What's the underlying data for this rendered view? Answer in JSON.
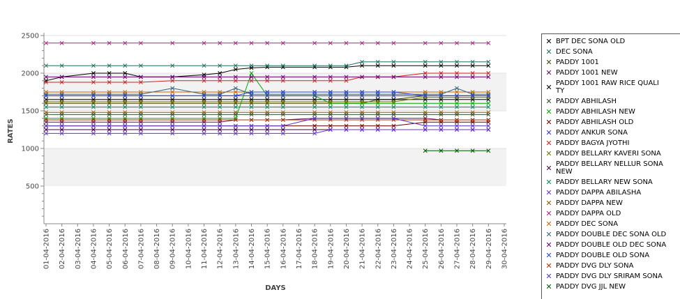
{
  "chart_data": {
    "type": "line",
    "title": "",
    "xlabel": "DAYS",
    "ylabel": "RATES",
    "ylim": [
      0,
      2500
    ],
    "yticks": [
      500,
      1000,
      1500,
      2000,
      2500
    ],
    "grid": "alternating horizontal bands",
    "legend_position": "right",
    "categories": [
      "01-04-2016",
      "02-04-2016",
      "03-04-2016",
      "04-04-2016",
      "05-04-2016",
      "06-04-2016",
      "07-04-2016",
      "08-04-2016",
      "09-04-2016",
      "10-04-2016",
      "11-04-2016",
      "12-04-2016",
      "13-04-2016",
      "14-04-2016",
      "15-04-2016",
      "16-04-2016",
      "17-04-2016",
      "18-04-2016",
      "19-04-2016",
      "20-04-2016",
      "21-04-2016",
      "22-04-2016",
      "23-04-2016",
      "24-04-2016",
      "25-04-2016",
      "26-04-2016",
      "27-04-2016",
      "28-04-2016",
      "29-04-2016",
      "30-04-2016"
    ],
    "series": [
      {
        "name": "BPT DEC SONA OLD",
        "color": "#000000",
        "values": [
          1900,
          1950,
          null,
          2000,
          2000,
          2000,
          1950,
          null,
          1950,
          null,
          1980,
          2000,
          2050,
          2070,
          2080,
          2080,
          null,
          2080,
          2080,
          2080,
          2100,
          2100,
          2100,
          null,
          2100,
          2100,
          2100,
          2100,
          2100,
          null
        ]
      },
      {
        "name": "DEC SONA",
        "color": "#1f6f5f",
        "values": [
          2100,
          2100,
          null,
          2100,
          2100,
          2100,
          2100,
          null,
          2100,
          null,
          2100,
          2100,
          2100,
          2100,
          2100,
          2100,
          null,
          2100,
          2100,
          2100,
          2150,
          2150,
          2150,
          null,
          2150,
          2150,
          2150,
          2150,
          2150,
          null
        ]
      },
      {
        "name": "PADDY 1001",
        "color": "#444400",
        "values": [
          1600,
          1600,
          null,
          1600,
          1600,
          1600,
          1600,
          null,
          1600,
          null,
          1600,
          1600,
          1600,
          1600,
          1600,
          1600,
          null,
          1600,
          1600,
          1600,
          1600,
          1650,
          1650,
          null,
          1700,
          1700,
          1700,
          1700,
          1700,
          null
        ]
      },
      {
        "name": "PADDY 1001 NEW",
        "color": "#5a0f5a",
        "values": [
          1350,
          1350,
          null,
          1350,
          1350,
          1350,
          1350,
          null,
          1350,
          null,
          1350,
          1350,
          1380,
          1380,
          1380,
          1380,
          null,
          1400,
          1400,
          1400,
          1400,
          1400,
          1400,
          null,
          1400,
          1380,
          1380,
          1380,
          1380,
          null
        ]
      },
      {
        "name": "PADDY 1001 RAW RICE QUALITY",
        "color": "#000000",
        "values": [
          1650,
          1650,
          null,
          1650,
          1650,
          1650,
          1650,
          null,
          1650,
          null,
          1650,
          1650,
          1650,
          1650,
          1650,
          1650,
          null,
          1650,
          1650,
          1650,
          1650,
          1650,
          1650,
          null,
          1650,
          1650,
          1650,
          1650,
          1650,
          null
        ]
      },
      {
        "name": "PADDY ABHILASH",
        "color": "#2f4f2f",
        "values": [
          1450,
          1450,
          null,
          1450,
          1450,
          1450,
          1450,
          null,
          1450,
          null,
          1450,
          1450,
          1450,
          1450,
          1450,
          1450,
          null,
          1450,
          1450,
          1450,
          1450,
          1450,
          1450,
          null,
          1450,
          1450,
          1450,
          1450,
          1450,
          null
        ]
      },
      {
        "name": "PADDY ABHILASH NEW",
        "color": "#00aa00",
        "values": [
          1400,
          1400,
          null,
          1400,
          1400,
          1400,
          1400,
          null,
          1400,
          null,
          1400,
          1400,
          1400,
          2000,
          1700,
          1700,
          null,
          1700,
          1600,
          1600,
          1600,
          1600,
          1600,
          null,
          1600,
          1600,
          1600,
          1600,
          1600,
          null
        ]
      },
      {
        "name": "PADDY ABHILASH OLD",
        "color": "#660000",
        "values": [
          1300,
          1300,
          null,
          1300,
          1300,
          1300,
          1300,
          null,
          1300,
          null,
          1300,
          1300,
          1300,
          1300,
          1300,
          1300,
          null,
          1300,
          1300,
          1300,
          1300,
          1300,
          1300,
          null,
          1350,
          1350,
          1350,
          1350,
          1350,
          null
        ]
      },
      {
        "name": "PADDY ANKUR SONA",
        "color": "#3333cc",
        "values": [
          1700,
          1700,
          null,
          1700,
          1700,
          1700,
          1700,
          null,
          1700,
          null,
          1700,
          1700,
          1700,
          1700,
          1700,
          1700,
          null,
          1700,
          1700,
          1700,
          1700,
          1700,
          1700,
          null,
          1700,
          1700,
          1700,
          1700,
          1700,
          null
        ]
      },
      {
        "name": "PADDY BAGYA JYOTHI",
        "color": "#cc2222",
        "values": [
          1880,
          1880,
          null,
          1880,
          1880,
          1880,
          1880,
          null,
          1900,
          null,
          1900,
          1900,
          1900,
          1900,
          1900,
          1900,
          null,
          1900,
          1900,
          1900,
          1950,
          1950,
          1950,
          null,
          2000,
          2000,
          2000,
          2000,
          2000,
          null
        ]
      },
      {
        "name": "PADDY BELLARY KAVERI SONA",
        "color": "#777700",
        "values": [
          1620,
          1620,
          null,
          1620,
          1620,
          1620,
          1620,
          null,
          1620,
          null,
          1620,
          1620,
          1620,
          1620,
          1620,
          1620,
          null,
          1620,
          1620,
          1620,
          1620,
          1620,
          1620,
          null,
          1680,
          1680,
          1680,
          1680,
          1680,
          null
        ]
      },
      {
        "name": "PADDY BELLARY NELLUR SONA NEW",
        "color": "#440044",
        "values": [
          1250,
          1250,
          null,
          1250,
          1250,
          1250,
          1250,
          null,
          1250,
          null,
          1250,
          1250,
          1250,
          1250,
          1250,
          1250,
          null,
          1250,
          1250,
          1250,
          1250,
          1250,
          1250,
          null,
          1250,
          1250,
          1250,
          1250,
          1250,
          null
        ]
      },
      {
        "name": "PADDY BELLARY NEW SONA",
        "color": "#008866",
        "values": [
          1550,
          1550,
          null,
          1550,
          1550,
          1550,
          1550,
          null,
          1550,
          null,
          1550,
          1550,
          1550,
          1550,
          1550,
          1550,
          null,
          1550,
          1550,
          1550,
          1550,
          1550,
          1550,
          null,
          1550,
          1550,
          1550,
          1550,
          1550,
          null
        ]
      },
      {
        "name": "PADDY DAPPA ABILASHA",
        "color": "#6633cc",
        "values": [
          1200,
          1200,
          null,
          1200,
          1200,
          1200,
          1200,
          null,
          1200,
          null,
          1200,
          1200,
          1200,
          1200,
          1200,
          1200,
          null,
          1200,
          1250,
          1250,
          1250,
          1250,
          1250,
          null,
          1250,
          1250,
          1250,
          1250,
          1250,
          null
        ]
      },
      {
        "name": "PADDY DAPPA NEW",
        "color": "#8a5a00",
        "values": [
          1480,
          1480,
          null,
          1480,
          1480,
          1480,
          1480,
          null,
          1480,
          null,
          1480,
          1480,
          1480,
          1480,
          1480,
          1480,
          null,
          1480,
          1480,
          1480,
          1480,
          1480,
          1480,
          null,
          1480,
          1480,
          1480,
          1480,
          1480,
          null
        ]
      },
      {
        "name": "PADDY DAPPA OLD",
        "color": "#aa2288",
        "values": [
          2400,
          2400,
          null,
          2400,
          2400,
          2400,
          2400,
          null,
          2400,
          null,
          2400,
          2400,
          2400,
          2400,
          2400,
          2400,
          null,
          2400,
          2400,
          2400,
          2400,
          2400,
          2400,
          null,
          2400,
          2400,
          2400,
          2400,
          2400,
          null
        ]
      },
      {
        "name": "PADDY DEC SONA",
        "color": "#cc6600",
        "values": [
          1750,
          1750,
          null,
          1750,
          1750,
          1750,
          1750,
          null,
          1750,
          null,
          1750,
          1750,
          1750,
          1750,
          1750,
          1750,
          null,
          1750,
          1750,
          1750,
          1750,
          1750,
          1750,
          null,
          1750,
          1750,
          1750,
          1750,
          1750,
          null
        ]
      },
      {
        "name": "PADDY DOUBLE DEC SONA OLD",
        "color": "#336677",
        "values": [
          1720,
          1720,
          null,
          1720,
          1720,
          1720,
          1720,
          null,
          1800,
          null,
          1720,
          1720,
          1800,
          1720,
          1720,
          1720,
          null,
          1720,
          1720,
          1720,
          1720,
          1720,
          1720,
          null,
          1720,
          1720,
          1800,
          1720,
          1720,
          null
        ]
      },
      {
        "name": "PADDY DOUBLE OLD DEC SONA",
        "color": "#660066",
        "values": [
          1950,
          1950,
          null,
          1950,
          1950,
          1950,
          1950,
          null,
          1950,
          null,
          1950,
          1950,
          1950,
          1950,
          1950,
          1950,
          null,
          1950,
          1950,
          1950,
          1950,
          1950,
          1950,
          null,
          1950,
          1950,
          1950,
          1950,
          1950,
          null
        ]
      },
      {
        "name": "PADDY DOUBLE OLD SONA",
        "color": "#2244dd",
        "values": [
          1700,
          1700,
          null,
          1700,
          1700,
          1700,
          1700,
          null,
          1700,
          null,
          1700,
          1700,
          1700,
          1750,
          1750,
          1750,
          null,
          1750,
          1750,
          1750,
          1750,
          1750,
          1750,
          null,
          1700,
          1700,
          1700,
          1700,
          1700,
          null
        ]
      },
      {
        "name": "PADDY DVG DLY SONA",
        "color": "#aa3300",
        "values": [
          1380,
          1380,
          null,
          1380,
          1380,
          1380,
          1380,
          null,
          1380,
          null,
          1380,
          1380,
          1380,
          1380,
          1380,
          1380,
          null,
          1380,
          1380,
          1380,
          1380,
          1380,
          1380,
          null,
          1380,
          1380,
          1380,
          1380,
          1380,
          null
        ]
      },
      {
        "name": "PADDY DVG DLY SRIRAM SONA",
        "color": "#5533cc",
        "values": [
          1300,
          1300,
          null,
          1300,
          1300,
          1300,
          1300,
          null,
          1300,
          null,
          1300,
          1300,
          1300,
          1300,
          1300,
          1300,
          null,
          1400,
          1400,
          1400,
          1400,
          1400,
          1400,
          null,
          1300,
          1300,
          1300,
          1300,
          1300,
          null
        ]
      },
      {
        "name": "PADDY DVG JJL NEW",
        "color": "#005500",
        "values": [
          null,
          null,
          null,
          null,
          null,
          null,
          null,
          null,
          null,
          null,
          null,
          null,
          null,
          null,
          null,
          null,
          null,
          null,
          null,
          null,
          null,
          null,
          null,
          null,
          970,
          970,
          970,
          970,
          970,
          null
        ]
      }
    ],
    "legend": [
      {
        "text": "BPT DEC SONA OLD",
        "mark": "✕",
        "color": "#000000"
      },
      {
        "text": "DEC SONA",
        "mark": "✕",
        "color": "#1f6f5f"
      },
      {
        "text": "PADDY 1001",
        "mark": "✕",
        "color": "#444400"
      },
      {
        "text": "PADDY 1001 NEW",
        "mark": "✕",
        "color": "#5a0f5a"
      },
      {
        "text": "PADDY 1001 RAW RICE QUALI\nTY",
        "mark": "✕",
        "color": "#000000"
      },
      {
        "text": "PADDY ABHILASH",
        "mark": "✕",
        "color": "#2f4f2f"
      },
      {
        "text": "PADDY ABHILASH NEW",
        "mark": "✕",
        "color": "#00aa00"
      },
      {
        "text": "PADDY ABHILASH OLD",
        "mark": "✕",
        "color": "#660000"
      },
      {
        "text": "PADDY ANKUR SONA",
        "mark": "✕",
        "color": "#3333cc"
      },
      {
        "text": "PADDY BAGYA JYOTHI",
        "mark": "✕",
        "color": "#cc2222"
      },
      {
        "text": "PADDY BELLARY KAVERI SONA",
        "mark": "✕",
        "color": "#777700"
      },
      {
        "text": "PADDY BELLARY NELLUR SONA\n NEW",
        "mark": "✕",
        "color": "#440044"
      },
      {
        "text": "PADDY BELLARY NEW SONA",
        "mark": "✕",
        "color": "#008866"
      },
      {
        "text": "PADDY DAPPA ABILASHA",
        "mark": "✕",
        "color": "#6633cc"
      },
      {
        "text": "PADDY DAPPA NEW",
        "mark": "✕",
        "color": "#8a5a00"
      },
      {
        "text": "PADDY DAPPA OLD",
        "mark": "✕",
        "color": "#aa2288"
      },
      {
        "text": "PADDY DEC SONA",
        "mark": "✕",
        "color": "#cc6600"
      },
      {
        "text": "PADDY DOUBLE DEC SONA OLD",
        "mark": "✕",
        "color": "#336677"
      },
      {
        "text": "PADDY DOUBLE OLD DEC SONA",
        "mark": "✕",
        "color": "#660066"
      },
      {
        "text": "PADDY DOUBLE OLD SONA",
        "mark": "✕",
        "color": "#2244dd"
      },
      {
        "text": "PADDY DVG DLY SONA",
        "mark": "✕",
        "color": "#aa3300"
      },
      {
        "text": "PADDY DVG DLY SRIRAM SONA",
        "mark": "✕",
        "color": "#5533cc"
      },
      {
        "text": "PADDY DVG JJL NEW",
        "mark": "✕",
        "color": "#005500"
      }
    ]
  }
}
